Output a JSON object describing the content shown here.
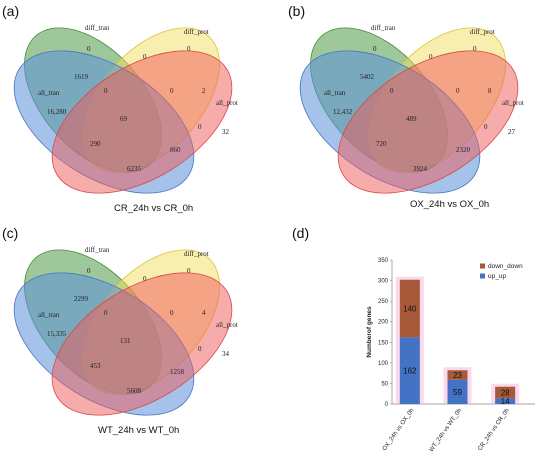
{
  "panels": [
    {
      "tag": "(a)",
      "caption": "CR_24h vs CR_0h",
      "labels": {
        "diff_tran": "diff_tran",
        "diff_prot": "diff_prot",
        "all_tran": "all_tran",
        "all_prot": "all_prot"
      },
      "numbers": {
        "top_left": "0",
        "top_right": "0",
        "top_mid": "0",
        "a": "1619",
        "b": "0",
        "c": "0",
        "d": "2",
        "left": "16,280",
        "center": "69",
        "e": "0",
        "right": "32",
        "f": "290",
        "g": "860",
        "bottom": "6235"
      }
    },
    {
      "tag": "(b)",
      "caption": "OX_24h vs OX_0h",
      "labels": {
        "diff_tran": "diff_tran",
        "diff_prot": "diff_prot",
        "all_tran": "all_tran",
        "all_prot": "all_prot"
      },
      "numbers": {
        "top_left": "0",
        "top_right": "0",
        "top_mid": "0",
        "a": "5402",
        "b": "0",
        "c": "0",
        "d": "8",
        "left": "12,432",
        "center": "489",
        "e": "0",
        "right": "27",
        "f": "720",
        "g": "2320",
        "bottom": "3924"
      }
    },
    {
      "tag": "(c)",
      "caption": "WT_24h vs WT_0h",
      "labels": {
        "diff_tran": "diff_tran",
        "diff_prot": "diff_prot",
        "all_tran": "all_tran",
        "all_prot": "all_prot"
      },
      "numbers": {
        "top_left": "0",
        "top_right": "0",
        "top_mid": "0",
        "a": "2299",
        "b": "0",
        "c": "0",
        "d": "4",
        "left": "15,335",
        "center": "131",
        "e": "0",
        "right": "34",
        "f": "453",
        "g": "1258",
        "bottom": "5608"
      }
    }
  ],
  "chart_tag": "(d)",
  "chart_data": {
    "type": "bar",
    "stacked": true,
    "categories": [
      "OX_24h vs OX_0h",
      "WT_24h vs WT_0h",
      "CR_24h vs CR_0h"
    ],
    "series": [
      {
        "name": "up_up",
        "values": [
          162,
          59,
          14
        ],
        "color": "#4472C4"
      },
      {
        "name": "down_down",
        "values": [
          140,
          23,
          28
        ],
        "color": "#A65A3A"
      }
    ],
    "title": "",
    "xlabel": "",
    "ylabel": "Numberof genes",
    "ylim": [
      0,
      350
    ],
    "yticks": [
      0,
      50,
      100,
      150,
      200,
      250,
      300,
      350
    ],
    "legend": "top-right"
  }
}
